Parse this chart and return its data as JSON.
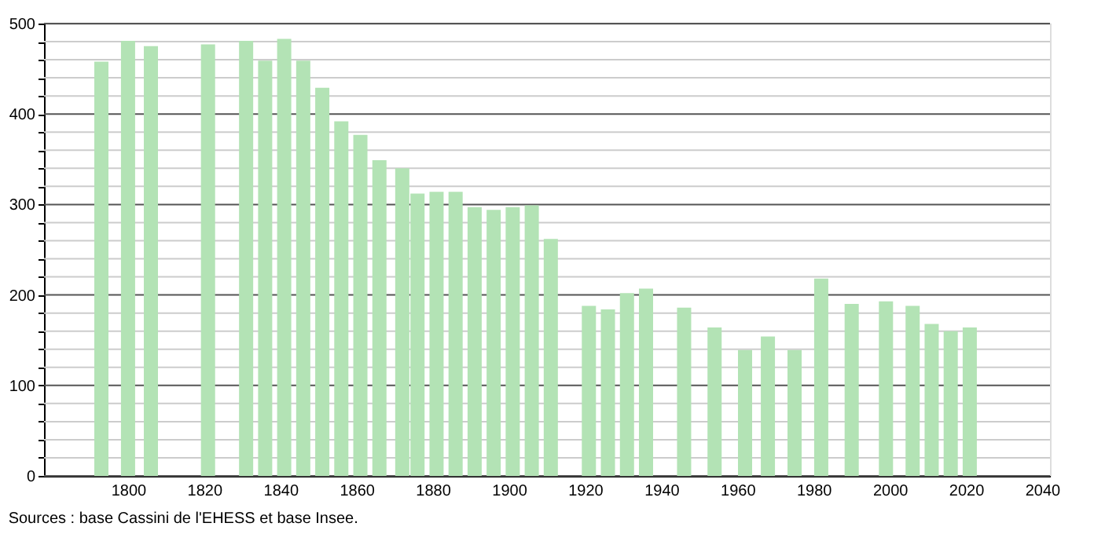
{
  "chart_data": {
    "type": "bar",
    "x": [
      1793,
      1800,
      1806,
      1821,
      1831,
      1836,
      1841,
      1846,
      1851,
      1856,
      1861,
      1866,
      1872,
      1876,
      1881,
      1886,
      1891,
      1896,
      1901,
      1906,
      1911,
      1921,
      1926,
      1931,
      1936,
      1946,
      1954,
      1962,
      1968,
      1975,
      1982,
      1990,
      1999,
      2006,
      2011,
      2016,
      2021
    ],
    "values": [
      458,
      481,
      475,
      477,
      481,
      459,
      483,
      459,
      429,
      392,
      377,
      349,
      340,
      312,
      314,
      314,
      297,
      294,
      297,
      299,
      262,
      188,
      184,
      202,
      207,
      186,
      164,
      139,
      154,
      139,
      218,
      190,
      193,
      188,
      168,
      160,
      164
    ],
    "color": "#b3e3b5",
    "xlim": [
      1780,
      2040
    ],
    "xticks": [
      1800,
      1820,
      1840,
      1860,
      1880,
      1900,
      1920,
      1940,
      1960,
      1980,
      2000,
      2020,
      2040
    ],
    "ylim": [
      0,
      500
    ],
    "yticks": [
      0,
      {
        "value": 20,
        "label": null
      },
      {
        "value": 40,
        "label": null
      },
      {
        "value": 60,
        "label": null
      },
      {
        "value": 80,
        "label": null
      },
      100,
      {
        "value": 120,
        "label": null
      },
      {
        "value": 140,
        "label": null
      },
      {
        "value": 160,
        "label": null
      },
      {
        "value": 180,
        "label": null
      },
      200,
      {
        "value": 220,
        "label": null
      },
      {
        "value": 240,
        "label": null
      },
      {
        "value": 260,
        "label": null
      },
      {
        "value": 280,
        "label": null
      },
      300,
      {
        "value": 320,
        "label": null
      },
      {
        "value": 340,
        "label": null
      },
      {
        "value": 360,
        "label": null
      },
      {
        "value": 380,
        "label": null
      },
      400,
      {
        "value": 420,
        "label": null
      },
      {
        "value": 440,
        "label": null
      },
      {
        "value": 460,
        "label": null
      },
      {
        "value": 480,
        "label": null
      },
      500
    ],
    "grid": true,
    "annotations": [
      "Sources : base Cassini de l'EHESS et base Insee."
    ]
  }
}
